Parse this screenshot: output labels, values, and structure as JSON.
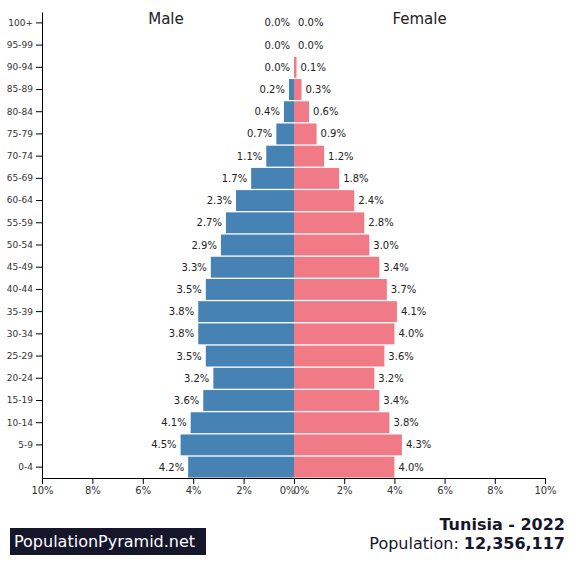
{
  "chart_data": [
    {
      "type": "bar",
      "title": "Male",
      "orientation": "horizontal",
      "color": "#4682b4",
      "data_labels": true,
      "categories": [
        "0-4",
        "5-9",
        "10-14",
        "15-19",
        "20-24",
        "25-29",
        "30-34",
        "35-39",
        "40-44",
        "45-49",
        "50-54",
        "55-59",
        "60-64",
        "65-69",
        "70-74",
        "75-79",
        "80-84",
        "85-89",
        "90-94",
        "95-99",
        "100+"
      ],
      "values": [
        4.2,
        4.5,
        4.1,
        3.6,
        3.2,
        3.5,
        3.8,
        3.8,
        3.5,
        3.3,
        2.9,
        2.7,
        2.3,
        1.7,
        1.1,
        0.7,
        0.4,
        0.2,
        0.0,
        0.0,
        0.0
      ],
      "value_labels": [
        "4.2%",
        "4.5%",
        "4.1%",
        "3.6%",
        "3.2%",
        "3.5%",
        "3.8%",
        "3.8%",
        "3.5%",
        "3.3%",
        "2.9%",
        "2.7%",
        "2.3%",
        "1.7%",
        "1.1%",
        "0.7%",
        "0.4%",
        "0.2%",
        "0.0%",
        "0.0%",
        "0.0%"
      ],
      "xlim": [
        10,
        0
      ],
      "xticks": [
        {
          "value": 10,
          "label": "10%"
        },
        {
          "value": 8,
          "label": "8%"
        },
        {
          "value": 6,
          "label": "6%"
        },
        {
          "value": 4,
          "label": "4%"
        },
        {
          "value": 2,
          "label": "2%"
        },
        {
          "value": 0,
          "label": "0%"
        }
      ]
    },
    {
      "type": "bar",
      "title": "Female",
      "orientation": "horizontal",
      "color": "#f07b87",
      "data_labels": true,
      "tick_labels": "x",
      "categories": [
        "0-4",
        "5-9",
        "10-14",
        "15-19",
        "20-24",
        "25-29",
        "30-34",
        "35-39",
        "40-44",
        "45-49",
        "50-54",
        "55-59",
        "60-64",
        "65-69",
        "70-74",
        "75-79",
        "80-84",
        "85-89",
        "90-94",
        "95-99",
        "100+"
      ],
      "values": [
        4.0,
        4.3,
        3.8,
        3.4,
        3.2,
        3.6,
        4.0,
        4.1,
        3.7,
        3.4,
        3.0,
        2.8,
        2.4,
        1.8,
        1.2,
        0.9,
        0.6,
        0.3,
        0.1,
        0.0,
        0.0
      ],
      "value_labels": [
        "4.0%",
        "4.3%",
        "3.8%",
        "3.4%",
        "3.2%",
        "3.6%",
        "4.0%",
        "4.1%",
        "3.7%",
        "3.4%",
        "3.0%",
        "2.8%",
        "2.4%",
        "1.8%",
        "1.2%",
        "0.9%",
        "0.6%",
        "0.3%",
        "0.1%",
        "0.0%",
        "0.0%"
      ],
      "xlim": [
        0,
        10
      ],
      "xticks": [
        {
          "value": 0,
          "label": "0%"
        },
        {
          "value": 2,
          "label": "2%"
        },
        {
          "value": 4,
          "label": "4%"
        },
        {
          "value": 6,
          "label": "6%"
        },
        {
          "value": 8,
          "label": "8%"
        },
        {
          "value": 10,
          "label": "10%"
        }
      ]
    }
  ],
  "footer": {
    "source": "PopulationPyramid.net",
    "title": "Tunisia - 2022",
    "population_label": "Population:",
    "population": "12,356,117"
  }
}
